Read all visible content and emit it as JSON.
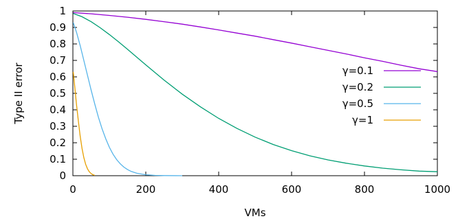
{
  "chart_data": {
    "type": "line",
    "title": "",
    "xlabel": "VMs",
    "ylabel": "Type II error",
    "xlim": [
      0,
      1000
    ],
    "ylim": [
      0,
      1
    ],
    "xticks": [
      0,
      200,
      400,
      600,
      800,
      1000
    ],
    "xtick_labels": [
      "0",
      "200",
      "400",
      "600",
      "800",
      "1000"
    ],
    "yticks": [
      0,
      0.1,
      0.2,
      0.3,
      0.4,
      0.5,
      0.6,
      0.7,
      0.8,
      0.9,
      1
    ],
    "ytick_labels": [
      "0",
      "0.1",
      "0.2",
      "0.3",
      "0.4",
      "0.5",
      "0.6",
      "0.7",
      "0.8",
      "0.9",
      "1"
    ],
    "grid": false,
    "legend_position": "right",
    "series": [
      {
        "name": "γ=0.1",
        "color": "#9400d3",
        "x": [
          1,
          50,
          100,
          150,
          200,
          250,
          300,
          350,
          400,
          450,
          500,
          550,
          600,
          650,
          700,
          750,
          800,
          850,
          900,
          950,
          1000
        ],
        "y": [
          0.99,
          0.983,
          0.973,
          0.962,
          0.949,
          0.935,
          0.92,
          0.903,
          0.885,
          0.866,
          0.847,
          0.826,
          0.805,
          0.783,
          0.761,
          0.739,
          0.716,
          0.694,
          0.671,
          0.649,
          0.632
        ]
      },
      {
        "name": "γ=0.2",
        "color": "#009e73",
        "x": [
          1,
          25,
          50,
          75,
          100,
          125,
          150,
          175,
          200,
          250,
          300,
          350,
          400,
          450,
          500,
          550,
          600,
          650,
          700,
          750,
          800,
          850,
          900,
          950,
          1000
        ],
        "y": [
          0.985,
          0.965,
          0.935,
          0.898,
          0.857,
          0.813,
          0.767,
          0.72,
          0.673,
          0.581,
          0.495,
          0.418,
          0.348,
          0.287,
          0.234,
          0.189,
          0.152,
          0.121,
          0.096,
          0.076,
          0.059,
          0.046,
          0.036,
          0.028,
          0.024
        ]
      },
      {
        "name": "γ=0.5",
        "color": "#56b4e9",
        "x": [
          1,
          10,
          20,
          30,
          40,
          50,
          60,
          70,
          80,
          90,
          100,
          110,
          120,
          130,
          140,
          150,
          160,
          175,
          200,
          225,
          250,
          300
        ],
        "y": [
          0.93,
          0.87,
          0.79,
          0.7,
          0.61,
          0.52,
          0.435,
          0.355,
          0.285,
          0.225,
          0.173,
          0.131,
          0.098,
          0.072,
          0.052,
          0.037,
          0.026,
          0.015,
          0.006,
          0.002,
          0.0007,
          0
        ]
      },
      {
        "name": "γ=1",
        "color": "#e69f00",
        "x": [
          1,
          5,
          10,
          15,
          20,
          25,
          30,
          35,
          40,
          45,
          50,
          55,
          60
        ],
        "y": [
          0.63,
          0.54,
          0.43,
          0.33,
          0.24,
          0.165,
          0.11,
          0.07,
          0.042,
          0.024,
          0.013,
          0.006,
          0.002
        ]
      }
    ]
  }
}
